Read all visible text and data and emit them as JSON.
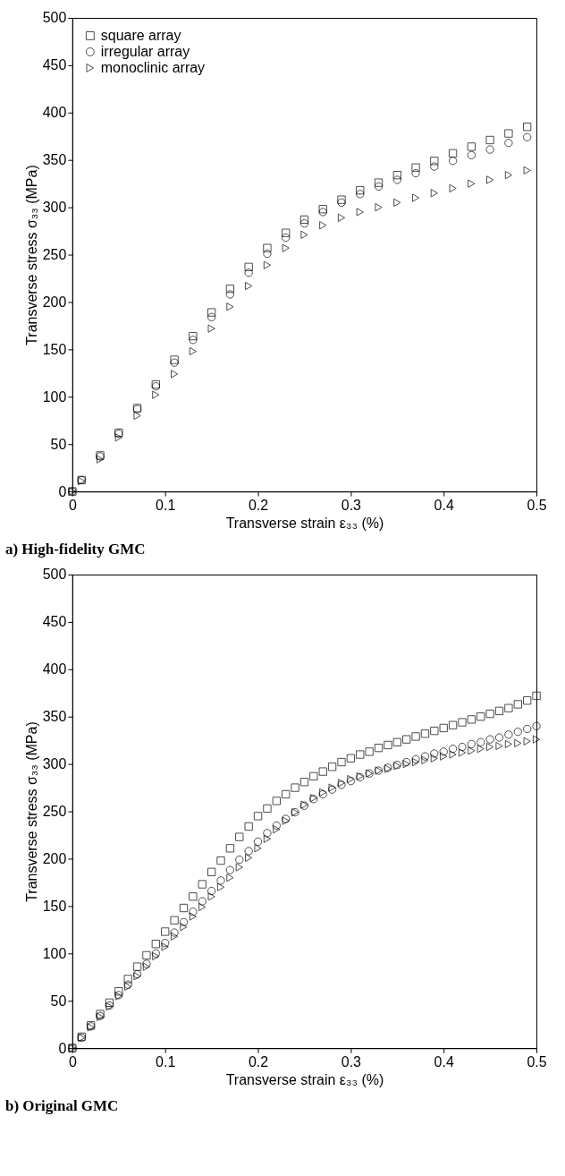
{
  "chart_data": [
    {
      "type": "scatter",
      "title": "a) High-fidelity GMC",
      "xlabel": "Transverse strain ε₃₃ (%)",
      "ylabel": "Transverse stress σ₃₃ (MPa)",
      "x": [
        0,
        0.01,
        0.03,
        0.05,
        0.07,
        0.09,
        0.11,
        0.13,
        0.15,
        0.17,
        0.19,
        0.21,
        0.23,
        0.25,
        0.27,
        0.29,
        0.31,
        0.33,
        0.35,
        0.37,
        0.39,
        0.41,
        0.43,
        0.45,
        0.47,
        0.49
      ],
      "series": [
        {
          "name": "square array",
          "color": "#000000",
          "marker": "square",
          "values": [
            0,
            12,
            38,
            62,
            88,
            113,
            139,
            164,
            189,
            214,
            237,
            257,
            273,
            287,
            298,
            308,
            318,
            326,
            334,
            342,
            349,
            357,
            364,
            371,
            378,
            385
          ]
        },
        {
          "name": "irregular array",
          "color": "#000000",
          "marker": "circle",
          "values": [
            0,
            12,
            37,
            61,
            87,
            111,
            136,
            160,
            184,
            208,
            231,
            251,
            268,
            283,
            295,
            305,
            314,
            322,
            329,
            336,
            343,
            349,
            355,
            361,
            368,
            374
          ]
        },
        {
          "name": "monoclinic array",
          "color": "#000000",
          "marker": "triangle",
          "values": [
            0,
            11,
            34,
            57,
            80,
            102,
            124,
            148,
            172,
            195,
            217,
            239,
            257,
            271,
            281,
            289,
            295,
            300,
            305,
            310,
            315,
            320,
            325,
            329,
            334,
            339
          ]
        }
      ],
      "xlim": [
        0,
        0.5
      ],
      "xticks": [
        0,
        0.1,
        0.2,
        0.3,
        0.4,
        0.5
      ],
      "ylim": [
        0,
        500
      ],
      "yticks": [
        0,
        50,
        100,
        150,
        200,
        250,
        300,
        350,
        400,
        450,
        500
      ],
      "grid": false,
      "legend": "top left"
    },
    {
      "type": "scatter",
      "title": "b) Original GMC",
      "xlabel": "Transverse strain ε₃₃ (%)",
      "ylabel": "Transverse stress σ₃₃ (MPa)",
      "x": [
        0,
        0.01,
        0.02,
        0.03,
        0.04,
        0.05,
        0.06,
        0.07,
        0.08,
        0.09,
        0.1,
        0.11,
        0.12,
        0.13,
        0.14,
        0.15,
        0.16,
        0.17,
        0.18,
        0.19,
        0.2,
        0.21,
        0.22,
        0.23,
        0.24,
        0.25,
        0.26,
        0.27,
        0.28,
        0.29,
        0.3,
        0.31,
        0.32,
        0.33,
        0.34,
        0.35,
        0.36,
        0.37,
        0.38,
        0.39,
        0.4,
        0.41,
        0.42,
        0.43,
        0.44,
        0.45,
        0.46,
        0.47,
        0.48,
        0.49,
        0.5
      ],
      "series": [
        {
          "name": "square array",
          "color": "#000000",
          "marker": "square",
          "values": [
            0,
            12,
            24,
            36,
            48,
            60,
            73,
            86,
            98,
            110,
            123,
            135,
            148,
            160,
            173,
            186,
            198,
            211,
            223,
            234,
            245,
            253,
            261,
            268,
            275,
            281,
            287,
            292,
            297,
            302,
            306,
            310,
            313,
            317,
            320,
            323,
            326,
            329,
            332,
            335,
            338,
            341,
            344,
            347,
            350,
            353,
            356,
            359,
            363,
            367,
            372
          ]
        },
        {
          "name": "irregular array",
          "color": "#000000",
          "marker": "circle",
          "values": [
            0,
            11,
            23,
            34,
            45,
            56,
            67,
            78,
            89,
            100,
            111,
            122,
            133,
            144,
            155,
            166,
            177,
            188,
            199,
            208,
            218,
            227,
            235,
            242,
            249,
            256,
            263,
            268,
            273,
            278,
            282,
            286,
            290,
            293,
            296,
            299,
            302,
            305,
            308,
            311,
            313,
            316,
            318,
            321,
            323,
            326,
            328,
            331,
            334,
            337,
            340
          ]
        },
        {
          "name": "monoclinic array",
          "color": "#000000",
          "marker": "triangle",
          "values": [
            0,
            11,
            22,
            33,
            44,
            55,
            65,
            76,
            86,
            97,
            107,
            118,
            128,
            139,
            149,
            160,
            170,
            180,
            191,
            201,
            211,
            221,
            231,
            240,
            249,
            257,
            264,
            270,
            275,
            280,
            284,
            287,
            290,
            293,
            295,
            298,
            300,
            302,
            304,
            306,
            308,
            310,
            312,
            314,
            316,
            318,
            319,
            321,
            322,
            324,
            326
          ]
        }
      ],
      "xlim": [
        0,
        0.5
      ],
      "xticks": [
        0,
        0.1,
        0.2,
        0.3,
        0.4,
        0.5
      ],
      "ylim": [
        0,
        500
      ],
      "yticks": [
        0,
        50,
        100,
        150,
        200,
        250,
        300,
        350,
        400,
        450,
        500
      ],
      "grid": false,
      "legend": "top left"
    }
  ]
}
